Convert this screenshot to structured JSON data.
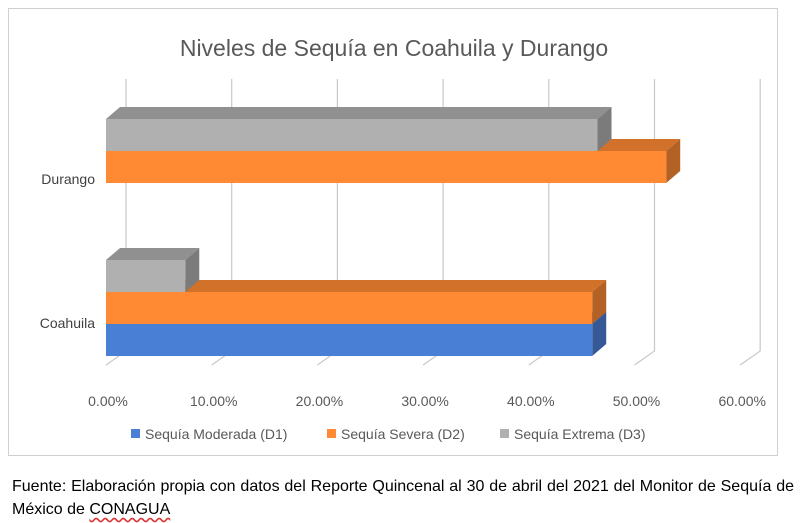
{
  "chart_data": {
    "type": "bar",
    "orientation": "horizontal",
    "style": "3d",
    "title": "Niveles de Sequía en Coahuila y Durango",
    "categories": [
      "Coahuila",
      "Durango"
    ],
    "series": [
      {
        "name": "Sequía Moderada (D1)",
        "color": "#4a7fd6",
        "values": [
          0.46,
          null
        ]
      },
      {
        "name": "Sequía Severa (D2)",
        "color": "#ff8a33",
        "values": [
          0.46,
          0.53
        ]
      },
      {
        "name": "Sequía Extrema (D3)",
        "color": "#b0b0b0",
        "values": [
          0.075,
          0.465
        ]
      }
    ],
    "xticks": [
      "0.00%",
      "10.00%",
      "20.00%",
      "30.00%",
      "40.00%",
      "50.00%",
      "60.00%"
    ],
    "xlim": [
      0,
      0.6
    ],
    "grid": true,
    "legend": "bottom"
  },
  "caption": {
    "text": "Fuente: Elaboración propia con datos del Reporte Quincenal al 30 de abril del 2021 del Monitor de Sequía de México de ",
    "underlined": "CONAGUA"
  }
}
